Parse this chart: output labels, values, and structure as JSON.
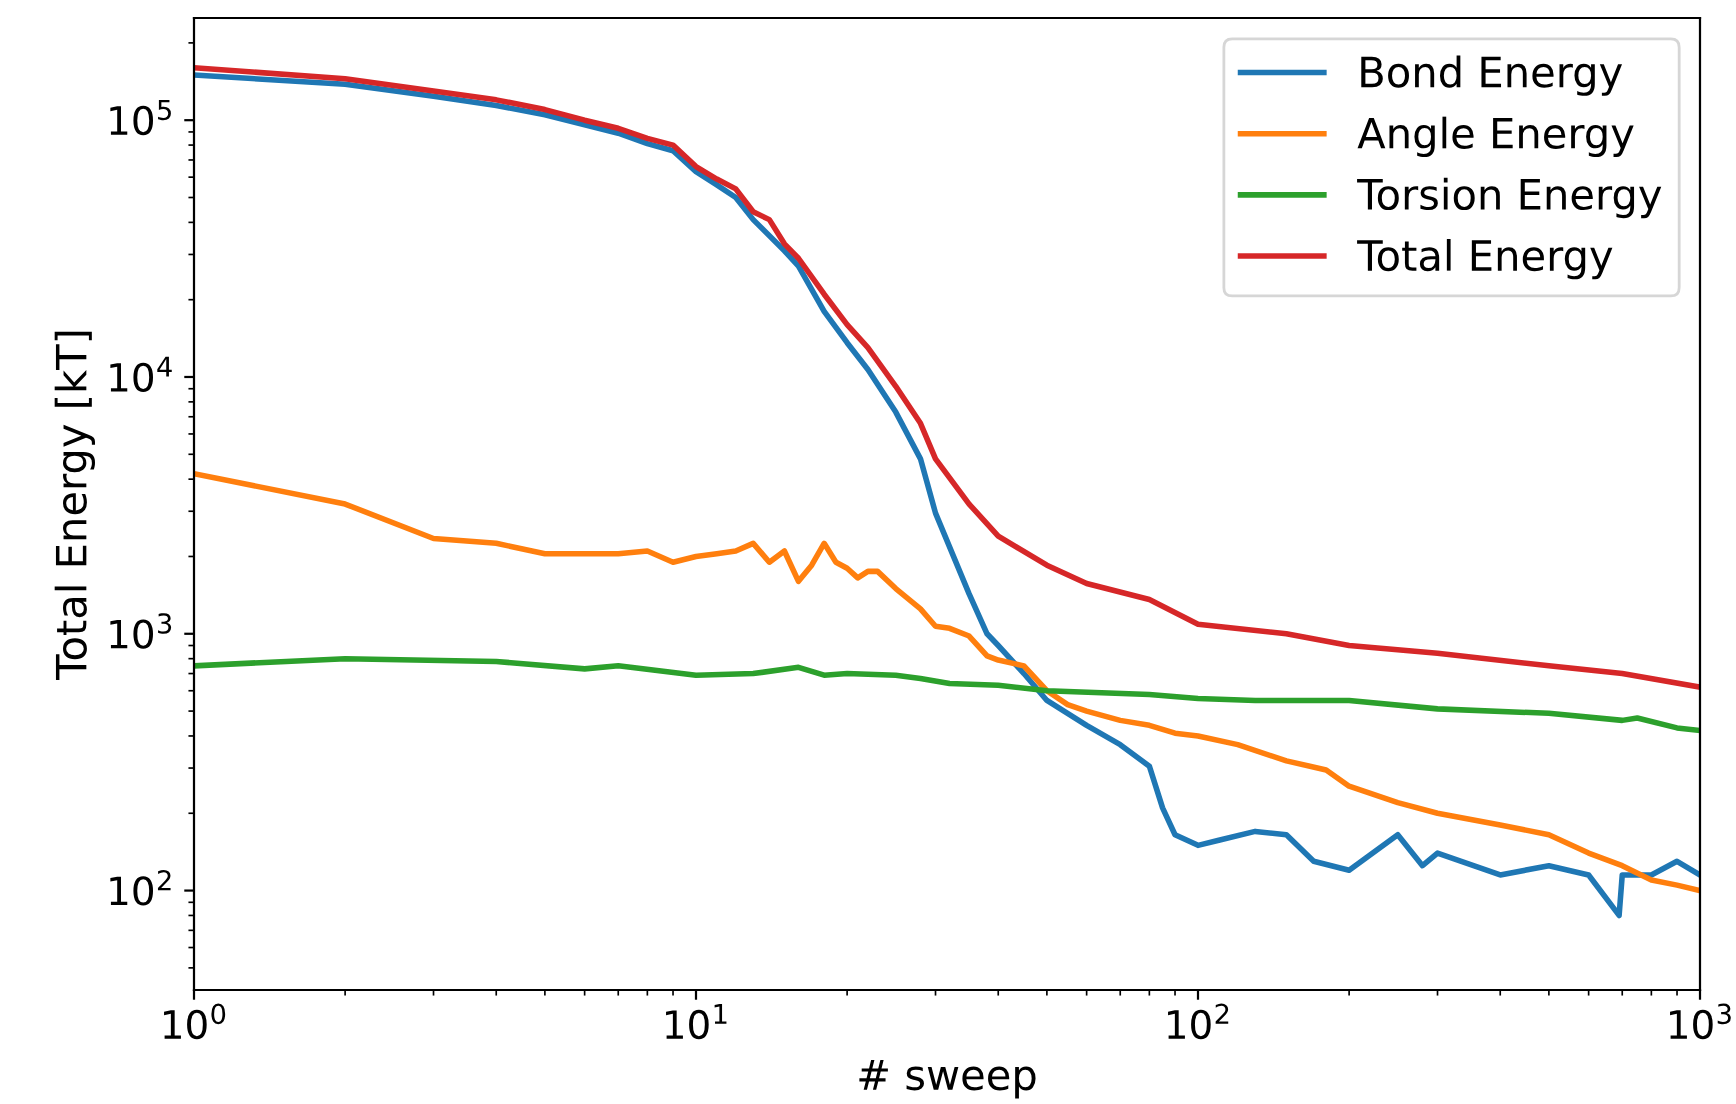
{
  "chart_data": {
    "type": "line",
    "xlabel": "# sweep",
    "ylabel": "Total Energy [kT]",
    "log": "xy",
    "grid": false,
    "legend": "top right",
    "xlim": [
      1,
      1000
    ],
    "ylim": [
      41,
      250000
    ],
    "xticks": [
      {
        "value": 1,
        "label": "10$^{0}$"
      },
      {
        "value": 10,
        "label": "10$^{1}$"
      },
      {
        "value": 100,
        "label": "10$^{2}$"
      },
      {
        "value": 1000,
        "label": "10$^{3}$"
      }
    ],
    "yticks": [
      {
        "value": 100,
        "label": "10$^{2}$"
      },
      {
        "value": 1000,
        "label": "10$^{3}$"
      },
      {
        "value": 10000,
        "label": "10$^{4}$"
      },
      {
        "value": 100000,
        "label": "10$^{5}$"
      }
    ],
    "series": [
      {
        "name": "Bond Energy",
        "color": "#1f77b4",
        "x": [
          1,
          2,
          3,
          4,
          5,
          6,
          7,
          8,
          9,
          10,
          11,
          12,
          13,
          15,
          16,
          18,
          20,
          22,
          25,
          28,
          30,
          35,
          38,
          40,
          45,
          50,
          60,
          70,
          80,
          85,
          90,
          100,
          110,
          130,
          150,
          170,
          200,
          250,
          280,
          300,
          400,
          500,
          600,
          690,
          700,
          800,
          900,
          1000
        ],
        "values": [
          150000,
          138000,
          124000,
          114000,
          105000,
          96000,
          89000,
          81000,
          76000,
          63000,
          56000,
          50000,
          41000,
          31000,
          27000,
          18000,
          13600,
          10700,
          7300,
          4800,
          2950,
          1430,
          1000,
          900,
          700,
          550,
          440,
          370,
          305,
          210,
          165,
          150,
          157,
          170,
          165,
          130,
          120,
          165,
          125,
          140,
          115,
          125,
          115,
          80,
          115,
          115,
          130,
          115
        ]
      },
      {
        "name": "Angle Energy",
        "color": "#ff7f0e",
        "x": [
          1,
          2,
          3,
          4,
          5,
          6,
          7,
          8,
          9,
          10,
          11,
          12,
          13,
          14,
          15,
          16,
          17,
          18,
          19,
          20,
          21,
          22,
          23,
          25,
          28,
          30,
          32,
          35,
          38,
          40,
          45,
          50,
          55,
          60,
          70,
          80,
          90,
          100,
          120,
          150,
          180,
          200,
          250,
          300,
          400,
          500,
          600,
          700,
          800,
          900,
          1000
        ],
        "values": [
          4200,
          3200,
          2350,
          2250,
          2050,
          2050,
          2050,
          2100,
          1900,
          2000,
          2050,
          2100,
          2250,
          1900,
          2100,
          1600,
          1850,
          2250,
          1900,
          1800,
          1650,
          1750,
          1750,
          1500,
          1250,
          1070,
          1050,
          980,
          820,
          790,
          750,
          600,
          530,
          500,
          460,
          440,
          410,
          400,
          370,
          320,
          295,
          255,
          220,
          200,
          180,
          165,
          140,
          125,
          110,
          105,
          100
        ]
      },
      {
        "name": "Torsion Energy",
        "color": "#2ca02c",
        "x": [
          1,
          2,
          4,
          6,
          7,
          10,
          13,
          16,
          18,
          20,
          25,
          28,
          32,
          40,
          50,
          80,
          100,
          130,
          200,
          300,
          500,
          700,
          750,
          900,
          1000
        ],
        "values": [
          750,
          800,
          780,
          730,
          750,
          690,
          700,
          740,
          690,
          700,
          690,
          670,
          640,
          630,
          600,
          580,
          560,
          550,
          550,
          510,
          490,
          460,
          470,
          430,
          420
        ]
      },
      {
        "name": "Total Energy",
        "color": "#d62728",
        "x": [
          1,
          2,
          3,
          4,
          5,
          6,
          7,
          8,
          9,
          10,
          11,
          12,
          13,
          14,
          15,
          16,
          18,
          20,
          22,
          25,
          28,
          30,
          35,
          40,
          50,
          60,
          80,
          100,
          150,
          200,
          300,
          500,
          700,
          1000
        ],
        "values": [
          160000,
          145000,
          130000,
          120000,
          110000,
          100000,
          93000,
          85000,
          80000,
          66000,
          59000,
          54000,
          44000,
          41000,
          33000,
          29000,
          21000,
          16000,
          13000,
          9200,
          6600,
          4800,
          3200,
          2400,
          1850,
          1570,
          1360,
          1090,
          1000,
          900,
          840,
          750,
          700,
          620
        ]
      }
    ]
  }
}
